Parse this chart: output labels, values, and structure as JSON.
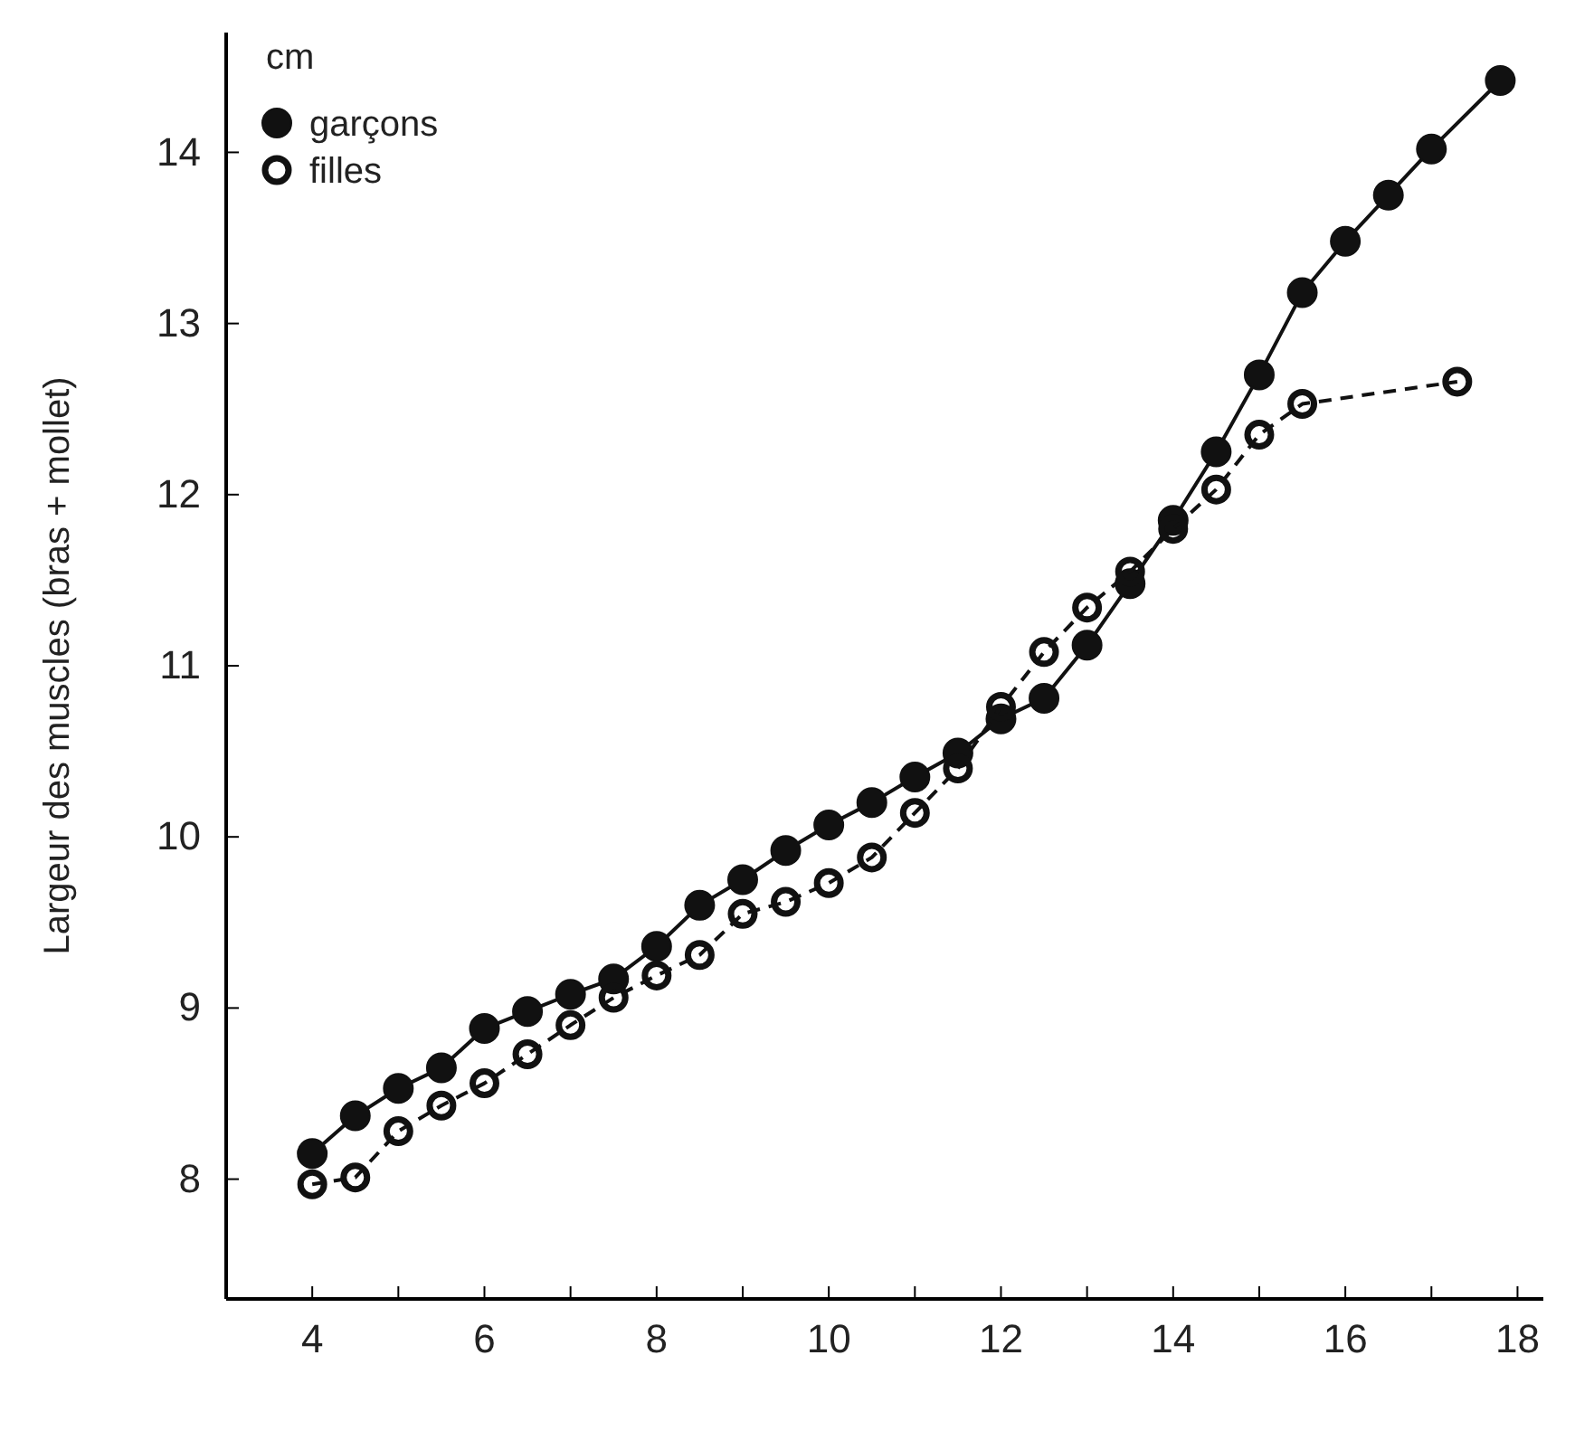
{
  "chart_data": {
    "type": "line",
    "ylabel": "Largeur des muscles (bras + mollet)",
    "annotations": [
      "cm"
    ],
    "xlim": [
      3,
      18.3
    ],
    "ylim": [
      7.3,
      14.7
    ],
    "xticks": [
      4,
      {
        "value": 5,
        "label": null
      },
      6,
      {
        "value": 7,
        "label": null
      },
      8,
      {
        "value": 9,
        "label": null
      },
      10,
      {
        "value": 11,
        "label": null
      },
      12,
      {
        "value": 13,
        "label": null
      },
      14,
      {
        "value": 15,
        "label": null
      },
      16,
      {
        "value": 17,
        "label": null
      },
      18
    ],
    "yticks": [
      8,
      9,
      10,
      11,
      12,
      13,
      14
    ],
    "grid": false,
    "legend": "top left",
    "marker": "circle",
    "series": [
      {
        "name": "garçons",
        "color": "#111111",
        "line_style": "solid",
        "x": [
          4,
          4.5,
          5,
          5.5,
          6,
          6.5,
          7,
          7.5,
          8,
          8.5,
          9,
          9.5,
          10,
          10.5,
          11,
          11.5,
          12,
          12.5,
          13,
          13.5,
          14,
          14.5,
          15,
          15.5,
          16,
          16.5,
          17,
          17.8
        ],
        "values": [
          8.15,
          8.37,
          8.53,
          8.65,
          8.88,
          8.98,
          9.08,
          9.17,
          9.36,
          9.6,
          9.75,
          9.92,
          10.07,
          10.2,
          10.35,
          10.49,
          10.69,
          10.81,
          11.12,
          11.48,
          11.85,
          12.25,
          12.7,
          13.18,
          13.48,
          13.75,
          14.02,
          14.42
        ]
      },
      {
        "name": "filles",
        "color": "#111111",
        "line_style": "dashed",
        "x": [
          4,
          4.5,
          5,
          5.5,
          6,
          6.5,
          7,
          7.5,
          8,
          8.5,
          9,
          9.5,
          10,
          10.5,
          11,
          11.5,
          12,
          12.5,
          13,
          13.5,
          14,
          14.5,
          15,
          15.5,
          17.3
        ],
        "values": [
          7.97,
          8.01,
          8.28,
          8.43,
          8.56,
          8.73,
          8.9,
          9.06,
          9.19,
          9.31,
          9.55,
          9.62,
          9.73,
          9.88,
          10.14,
          10.4,
          10.76,
          11.08,
          11.34,
          11.55,
          11.8,
          12.03,
          12.35,
          12.53,
          12.66
        ]
      }
    ]
  }
}
